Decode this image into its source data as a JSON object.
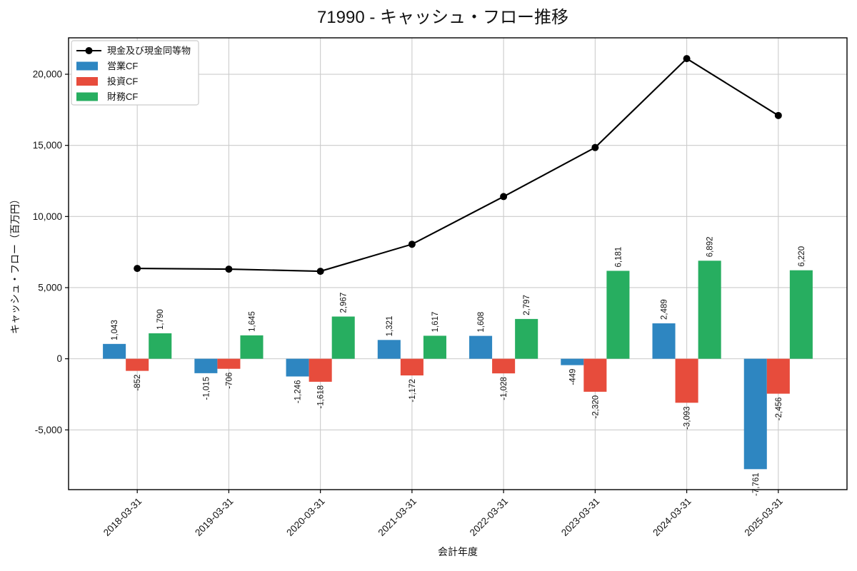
{
  "chart_data": {
    "type": "bar",
    "combo": "grouped bars with overlaid line",
    "title": "71990 - キャッシュ・フロー推移",
    "xlabel": "会計年度",
    "ylabel": "キャッシュ・フロー（百万円）",
    "categories": [
      "2018-03-31",
      "2019-03-31",
      "2020-03-31",
      "2021-03-31",
      "2022-03-31",
      "2023-03-31",
      "2024-03-31",
      "2025-03-31"
    ],
    "bar_series": [
      {
        "name": "営業CF",
        "color": "#2e86c1",
        "values": [
          1043,
          -1015,
          -1246,
          1321,
          1608,
          -449,
          2489,
          -7761
        ]
      },
      {
        "name": "投資CF",
        "color": "#e74c3c",
        "values": [
          -852,
          -706,
          -1618,
          -1172,
          -1028,
          -2320,
          -3093,
          -2456
        ]
      },
      {
        "name": "財務CF",
        "color": "#27ae60",
        "values": [
          1790,
          1645,
          2967,
          1617,
          2797,
          6181,
          6892,
          6220
        ]
      }
    ],
    "line_series": {
      "name": "現金及び現金同等物",
      "color": "#000000",
      "values": [
        6350,
        6300,
        6150,
        8050,
        11400,
        14850,
        21100,
        17100
      ]
    },
    "yticks": [
      -5000,
      0,
      5000,
      10000,
      15000,
      20000
    ],
    "ylim": [
      -9200,
      22560
    ],
    "grid": true,
    "grid_color": "#cccccc",
    "spine_color": "#000000",
    "legend_position": "upper left"
  }
}
